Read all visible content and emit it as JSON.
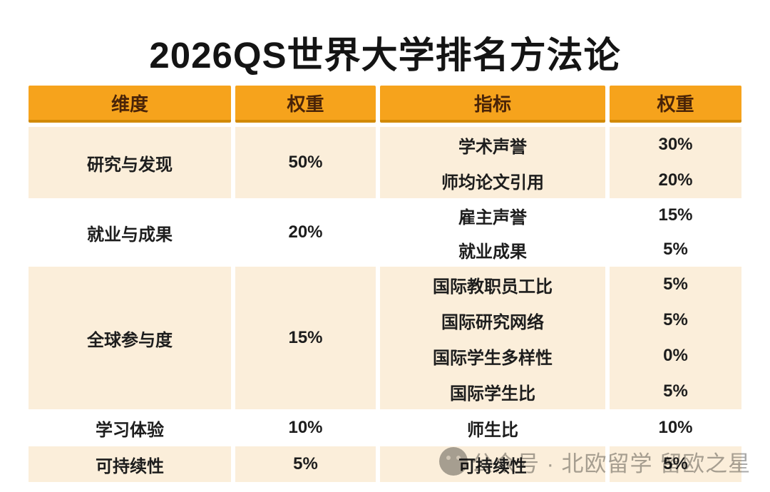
{
  "title": "2026QS世界大学排名方法论",
  "table": {
    "headers": [
      "维度",
      "权重",
      "指标",
      "权重"
    ],
    "groups": [
      {
        "dimension": "研究与发现",
        "weight": "50%",
        "indicators": [
          {
            "name": "学术声誉",
            "weight": "30%"
          },
          {
            "name": "师均论文引用",
            "weight": "20%"
          }
        ]
      },
      {
        "dimension": "就业与成果",
        "weight": "20%",
        "indicators": [
          {
            "name": "雇主声誉",
            "weight": "15%"
          },
          {
            "name": "就业成果",
            "weight": "5%"
          }
        ]
      },
      {
        "dimension": "全球参与度",
        "weight": "15%",
        "indicators": [
          {
            "name": "国际教职员工比",
            "weight": "5%"
          },
          {
            "name": "国际研究网络",
            "weight": "5%"
          },
          {
            "name": "国际学生多样性",
            "weight": "0%"
          },
          {
            "name": "国际学生比",
            "weight": "5%"
          }
        ]
      },
      {
        "dimension": "学习体验",
        "weight": "10%",
        "indicators": [
          {
            "name": "师生比",
            "weight": "10%"
          }
        ]
      },
      {
        "dimension": "可持续性",
        "weight": "5%",
        "indicators": [
          {
            "name": "可持续性",
            "weight": "5%"
          }
        ]
      }
    ]
  },
  "watermark": {
    "icon": "wechat-official-account-logo",
    "text": "公众号 · 北欧留学 留欧之星"
  },
  "colors": {
    "header_bg": "#F6A31C",
    "header_border": "#D28A06",
    "header_text": "#4A2408",
    "row_alt_bg": "#FBEEDA",
    "row_bg": "#FFFFFF",
    "title_text": "#141414",
    "body_text": "#1D1D1D",
    "watermark": "#A9A9A9"
  },
  "chart_data": {
    "type": "table",
    "title": "2026QS世界大学排名方法论",
    "columns": [
      "维度",
      "权重",
      "指标",
      "权重"
    ],
    "rows": [
      [
        "研究与发现",
        "50%",
        "学术声誉",
        "30%"
      ],
      [
        "研究与发现",
        "50%",
        "师均论文引用",
        "20%"
      ],
      [
        "就业与成果",
        "20%",
        "雇主声誉",
        "15%"
      ],
      [
        "就业与成果",
        "20%",
        "就业成果",
        "5%"
      ],
      [
        "全球参与度",
        "15%",
        "国际教职员工比",
        "5%"
      ],
      [
        "全球参与度",
        "15%",
        "国际研究网络",
        "5%"
      ],
      [
        "全球参与度",
        "15%",
        "国际学生多样性",
        "0%"
      ],
      [
        "全球参与度",
        "15%",
        "国际学生比",
        "5%"
      ],
      [
        "学习体验",
        "10%",
        "师生比",
        "10%"
      ],
      [
        "可持续性",
        "5%",
        "可持续性",
        "5%"
      ]
    ]
  }
}
